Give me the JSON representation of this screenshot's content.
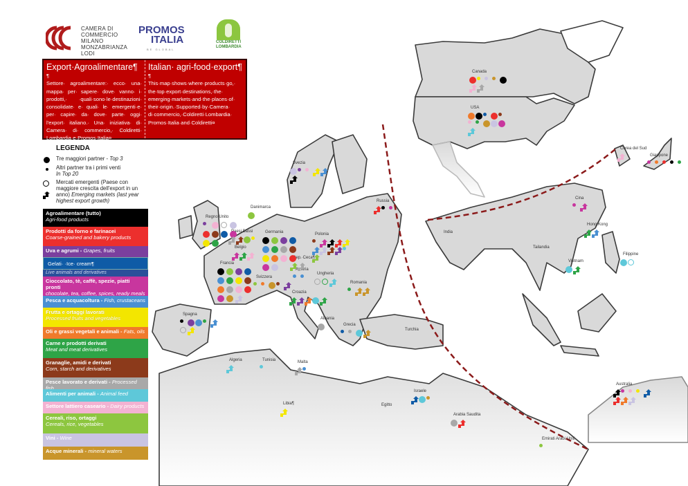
{
  "header": {
    "ccc_logo_text": [
      "CAMERA DI",
      "COMMERCIO",
      "MILANO",
      "MONZABRIANZA",
      "LODI"
    ],
    "promos_logo": {
      "line1": "PROMOS",
      "line2": "ITALIA",
      "tagline": "BE GLOBAL"
    },
    "coldiretti_logo": {
      "line1": "COLDIRETTI",
      "line2": "LOMBARDIA"
    }
  },
  "intro": {
    "it_title": "Export·Agroalimentare¶",
    "it_text": "Settore· agroalimentare:· ecco· una· mappa· per· sapere· dove· vanno· i· prodotti,· ·quali·sono·le·destinazioni· consolidate· e· quali· le· emergenti·e· per· capire· da· dove· parte· oggi· l'export· italiano.· Una· iniziativa· di· Camera· di· commercio,· Coldiretti· Lombardia·e·Promos·Italia¤",
    "en_title": "Italian· agri-food·export¶",
    "en_text": "This·map·shows·where·products·go,· the·top·export·destinations,·the· emerging·markets·and·the·places·of· their·origin.·Supported·by·Camera· di·commercio,·Coldiretti·Lombardia· Promos·Italia·and·Coldiretti¤"
  },
  "legend": {
    "title": "LEGENDA",
    "top3": {
      "it": "Tre maggiori partner - ",
      "en": "Top 3"
    },
    "top20": {
      "it": "Altri partner tra i primi venti",
      "en": "In Top 20"
    },
    "emerging": {
      "it": "Mercati emergenti (Paese con maggiore crescita dell'export in un anno) ",
      "en": "Emerging markets (last year highest export growth)"
    }
  },
  "categories": [
    {
      "key": "all",
      "it": "Agroalimentare (tutto)",
      "en": "Agri-food products",
      "color": "#000000"
    },
    {
      "key": "bakery",
      "it": "Prodotti da forno e farinacei",
      "en": "Coarse-grained and bakery products",
      "color": "#ec2f2d"
    },
    {
      "key": "grapes",
      "it": "Uva e agrumi - ",
      "en": "Grapes, fruits",
      "color": "#7b3f9e"
    },
    {
      "key": "gelati",
      "it": "Gelati· ·Ice· cream¶",
      "en": "Live animals and derivatives",
      "color": "#0f5ba6"
    },
    {
      "key": "chocolate",
      "it": "Cioccolato, tè, caffè, spezie, piatti pronti",
      "en": "chocolate, tea, coffee, spices, ready meals",
      "color": "#c8369e"
    },
    {
      "key": "fish",
      "it": "Pesca e acquacoltura - ",
      "en": "Fish, crustaceans",
      "color": "#4a90d2"
    },
    {
      "key": "fruitveg",
      "it": "Frutta e ortaggi lavorati",
      "en": "Processed fruits and vegetables",
      "color": "#f3e600"
    },
    {
      "key": "oils",
      "it": "Oli e grassi vegetali e animali - ",
      "en": "Fats, oils",
      "color": "#f07a2b"
    },
    {
      "key": "meat",
      "it": "Carne e prodotti derivati",
      "en": "Meat and meat derivatives",
      "color": "#2ea447"
    },
    {
      "key": "grains",
      "it": "Granaglie, amidi e derivati",
      "en": "Corn, starch and derivatives",
      "color": "#8c3a1b"
    },
    {
      "key": "procfish",
      "it": "Pesce lavorato e derivati - ",
      "en": "Processed fish",
      "color": "#a8a8a8"
    },
    {
      "key": "feed",
      "it": "Alimenti per animali - ",
      "en": "Animal feed",
      "color": "#5ec8d9"
    },
    {
      "key": "dairy",
      "it": "Settore lattiero caseario - ",
      "en": "Dairy products",
      "color": "#f3b2d2"
    },
    {
      "key": "cereals",
      "it": "Cereali, riso, ortaggi",
      "en": "Cereals, rice, vegetables",
      "color": "#8dc63f"
    },
    {
      "key": "wine",
      "it": "Vini - ",
      "en": "Wine",
      "color": "#c9c4e2"
    },
    {
      "key": "water",
      "it": "Acque minerali - ",
      "en": "mineral waters",
      "color": "#c9952b"
    }
  ],
  "countries": [
    {
      "name": "Canada",
      "markers": [
        [
          "bakery",
          "top3"
        ],
        [
          "fruitveg",
          "top20"
        ],
        [
          "wine",
          "top20"
        ],
        [
          "water",
          "top20"
        ],
        [
          "all",
          "top3"
        ],
        [
          "dairy",
          "emerging"
        ],
        [
          "procfish",
          "emerging"
        ]
      ]
    },
    {
      "name": "USA",
      "markers": [
        [
          "oils",
          "top3"
        ],
        [
          "all",
          "top3"
        ],
        [
          "gelati",
          "top20"
        ],
        [
          "bakery",
          "top3"
        ],
        [
          "grains",
          "top20"
        ],
        [
          "dairy",
          "top20"
        ],
        [
          "meat",
          "top20"
        ],
        [
          "water",
          "top3"
        ],
        [
          "wine",
          "top3"
        ],
        [
          "chocolate",
          "top3"
        ],
        [
          "feed",
          "emerging"
        ]
      ]
    },
    {
      "name": "Corea del Sud",
      "markers": [
        [
          "dairy",
          "emerging"
        ]
      ]
    },
    {
      "name": "Giappone",
      "markers": [
        [
          "chocolate",
          "top20"
        ],
        [
          "oils",
          "top20"
        ],
        [
          "bakery",
          "top20"
        ],
        [
          "all",
          "top20"
        ],
        [
          "meat",
          "top20"
        ]
      ]
    },
    {
      "name": "Cina",
      "markers": [
        [
          "chocolate",
          "top20"
        ],
        [
          "chocolate",
          "emerging"
        ]
      ]
    },
    {
      "name": "Hong Kong",
      "markers": [
        [
          "meat",
          "emerging"
        ],
        [
          "fish",
          "emerging"
        ]
      ]
    },
    {
      "name": "India",
      "markers": []
    },
    {
      "name": "Tailandia",
      "markers": []
    },
    {
      "name": "Vietnam",
      "markers": [
        [
          "feed",
          "top3"
        ],
        [
          "meat",
          "emerging"
        ]
      ]
    },
    {
      "name": "Filippine",
      "markers": [
        [
          "feed",
          "top3"
        ],
        [
          "feed",
          "emerging-circle"
        ]
      ]
    },
    {
      "name": "Australia",
      "markers": [
        [
          "all",
          "emerging"
        ],
        [
          "chocolate",
          "top20"
        ],
        [
          "dairy",
          "top20"
        ],
        [
          "fruitveg",
          "top20"
        ],
        [
          "gelati",
          "emerging"
        ],
        [
          "bakery",
          "emerging"
        ],
        [
          "oils",
          "emerging"
        ],
        [
          "wine",
          "emerging"
        ]
      ]
    },
    {
      "name": "Emirati Arabi Uniti",
      "markers": [
        [
          "cereals",
          "top20"
        ]
      ]
    },
    {
      "name": "Arabia Saudita",
      "markers": [
        [
          "procfish",
          "top3"
        ],
        [
          "bakery",
          "emerging"
        ]
      ]
    },
    {
      "name": "Egitto",
      "markers": []
    },
    {
      "name": "Israele",
      "markers": [
        [
          "gelati",
          "emerging"
        ],
        [
          "feed",
          "top3"
        ],
        [
          "water",
          "top20"
        ]
      ]
    },
    {
      "name": "Turchia",
      "markers": []
    },
    {
      "name": "Libia¶",
      "markers": [
        [
          "fruitveg",
          "emerging"
        ]
      ]
    },
    {
      "name": "Algeria",
      "markers": [
        [
          "feed",
          "emerging"
        ]
      ]
    },
    {
      "name": "Tunisia",
      "markers": [
        [
          "feed",
          "top20"
        ]
      ]
    },
    {
      "name": "Malta",
      "markers": [
        [
          "procfish",
          "emerging"
        ],
        [
          "fish",
          "top20"
        ]
      ]
    },
    {
      "name": "Grecia",
      "markers": [
        [
          "gelati",
          "top20"
        ],
        [
          "procfish",
          "top20"
        ],
        [
          "feed",
          "top3"
        ],
        [
          "water",
          "emerging"
        ]
      ]
    },
    {
      "name": "Albania",
      "markers": [
        [
          "procfish",
          "top3"
        ]
      ]
    },
    {
      "name": "Romania",
      "markers": [
        [
          "meat",
          "top20"
        ],
        [
          "water",
          "emerging"
        ],
        [
          "water",
          "emerging"
        ]
      ]
    },
    {
      "name": "Ungheria",
      "markers": [
        [
          "procfish",
          "emerging-circle"
        ],
        [
          "meat",
          "emerging-circle"
        ],
        [
          "feed",
          "emerging"
        ]
      ]
    },
    {
      "name": "Austria",
      "markers": [
        [
          "fish",
          "top20"
        ],
        [
          "fish",
          "top20"
        ]
      ]
    },
    {
      "name": "Croazia",
      "markers": [
        [
          "meat",
          "emerging"
        ],
        [
          "grapes",
          "emerging"
        ],
        [
          "oils",
          "emerging"
        ],
        [
          "feed",
          "top3"
        ],
        [
          "meat",
          "emerging"
        ]
      ]
    },
    {
      "name": "Svizzera",
      "markers": [
        [
          "cereals",
          "top20"
        ],
        [
          "oils",
          "top20"
        ],
        [
          "water",
          "top3"
        ],
        [
          "grains",
          "top20"
        ],
        [
          "grapes",
          "emerging"
        ]
      ]
    },
    {
      "name": "Rep.·Ceca¶",
      "markers": [
        [
          "cereals",
          "emerging"
        ],
        [
          "procfish",
          "emerging"
        ]
      ]
    },
    {
      "name": "Francia",
      "markers": [
        [
          "all",
          "top3"
        ],
        [
          "cereals",
          "top3"
        ],
        [
          "grapes",
          "top3"
        ],
        [
          "gelati",
          "top3"
        ],
        [
          "fish",
          "top3"
        ],
        [
          "meat",
          "top3"
        ],
        [
          "fruitveg",
          "top3"
        ],
        [
          "grains",
          "top3"
        ],
        [
          "oils",
          "top3"
        ],
        [
          "procfish",
          "top3"
        ],
        [
          "dairy",
          "top3"
        ],
        [
          "bakery",
          "top3"
        ],
        [
          "chocolate",
          "top3"
        ],
        [
          "water",
          "top3"
        ],
        [
          "wine",
          "emerging"
        ]
      ]
    },
    {
      "name": "Germania",
      "markers": [
        [
          "all",
          "top3"
        ],
        [
          "cereals",
          "top3"
        ],
        [
          "grapes",
          "top3"
        ],
        [
          "gelati",
          "top3"
        ],
        [
          "fish",
          "top3"
        ],
        [
          "meat",
          "top3"
        ],
        [
          "procfish",
          "top3"
        ],
        [
          "grains",
          "top3"
        ],
        [
          "fruitveg",
          "top3"
        ],
        [
          "oils",
          "top3"
        ],
        [
          "dairy",
          "top3"
        ],
        [
          "bakery",
          "top3"
        ],
        [
          "chocolate",
          "top3"
        ],
        [
          "wine",
          "top3"
        ]
      ]
    },
    {
      "name": "Polonia",
      "markers": [
        [
          "grains",
          "top20"
        ],
        [
          "chocolate",
          "emerging"
        ],
        [
          "all",
          "emerging"
        ],
        [
          "bakery",
          "emerging"
        ],
        [
          "fruitveg",
          "emerging"
        ],
        [
          "fish",
          "emerging"
        ],
        [
          "wine",
          "emerging"
        ],
        [
          "grains",
          "emerging"
        ],
        [
          "grapes",
          "emerging"
        ],
        [
          "feed",
          "top20"
        ],
        [
          "cereals",
          "emerging"
        ]
      ]
    },
    {
      "name": "Regno Unito",
      "markers": [
        [
          "grapes",
          "top20"
        ],
        [
          "dairy",
          "top3"
        ],
        [
          "procfish",
          "emerging-circle"
        ],
        [
          "wine",
          "top3"
        ],
        [
          "bakery",
          "top3"
        ],
        [
          "grains",
          "top3"
        ],
        [
          "gelati",
          "top3"
        ],
        [
          "chocolate",
          "top3"
        ],
        [
          "fruitveg",
          "top3"
        ],
        [
          "meat",
          "top3"
        ]
      ]
    },
    {
      "name": "Paesi Bassi",
      "markers": [
        [
          "procfish",
          "emerging"
        ],
        [
          "grains",
          "emerging"
        ],
        [
          "cereals",
          "top3"
        ],
        [
          "fruitveg",
          "top20"
        ]
      ]
    },
    {
      "name": "Belgio",
      "markers": [
        [
          "chocolate",
          "emerging"
        ],
        [
          "meat",
          "emerging"
        ],
        [
          "dairy",
          "emerging"
        ]
      ]
    },
    {
      "name": "Danimarca",
      "markers": [
        [
          "cereals",
          "top3"
        ]
      ]
    },
    {
      "name": "Svezia",
      "markers": [
        [
          "wine",
          "top3"
        ],
        [
          "grapes",
          "top20"
        ],
        [
          "dairy",
          "top20"
        ],
        [
          "fruitveg",
          "emerging"
        ],
        [
          "fish",
          "emerging"
        ],
        [
          "all",
          "emerging"
        ]
      ]
    },
    {
      "name": "Russia",
      "markers": [
        [
          "bakery",
          "emerging"
        ],
        [
          "all",
          "top20"
        ],
        [
          "chocolate",
          "top20"
        ]
      ]
    },
    {
      "name": "Spagna",
      "markers": [
        [
          "all",
          "top20"
        ],
        [
          "grapes",
          "top3"
        ],
        [
          "fish",
          "top3"
        ],
        [
          "meat",
          "top20"
        ],
        [
          "fish",
          "emerging"
        ],
        [
          "procfish",
          "emerging-circle"
        ],
        [
          "fruitveg",
          "emerging"
        ]
      ]
    }
  ],
  "map_style": {
    "land": "#d9d9d9",
    "border": "#3a3a3a",
    "dashed_line": "#8b1a1a"
  }
}
